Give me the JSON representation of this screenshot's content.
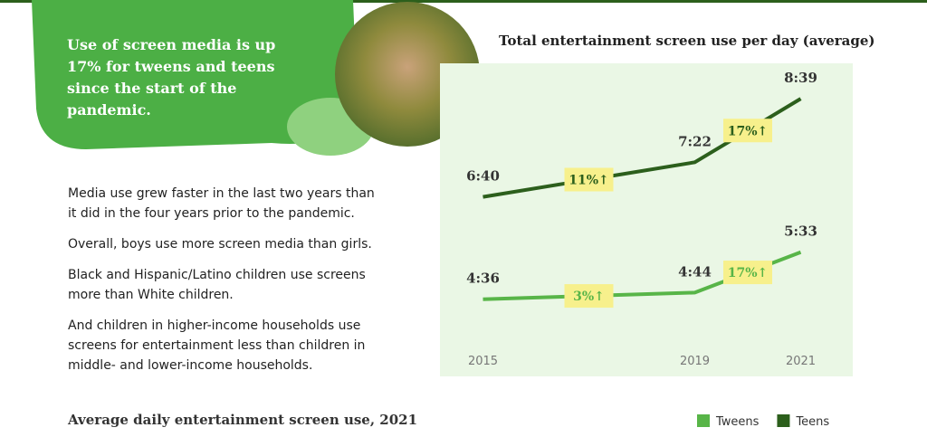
{
  "headline": "Use of screen media is up 17% for tweens and teens since the start of the pandemic.",
  "paragraphs": [
    "Media use grew faster in the last two years than it did in the four years prior to the pandemic.",
    "Overall, boys use more screen media than girls.",
    "Black and Hispanic/Latino children use screens more than White children.",
    "And children in higher-income households use screens for entertainment less than children in middle- and lower-income households."
  ],
  "section_heading": "Average daily entertainment screen use, 2021",
  "chart_data": {
    "type": "line",
    "title": "Total entertainment screen use per day (average)",
    "x": [
      2015,
      2019,
      2021
    ],
    "xlim": [
      2014,
      2022
    ],
    "xticks": [
      2015,
      2019,
      2021
    ],
    "ylim": [
      200,
      540
    ],
    "series": [
      {
        "name": "Tweens",
        "color": "#58b548",
        "values": [
          276,
          284,
          333
        ],
        "value_labels": [
          "4:36",
          "4:44",
          "5:33"
        ],
        "change_labels": [
          "3%↑",
          "17%↑"
        ]
      },
      {
        "name": "Teens",
        "color": "#2c5f1c",
        "values": [
          400,
          442,
          519
        ],
        "value_labels": [
          "6:40",
          "7:22",
          "8:39"
        ],
        "change_labels": [
          "11%↑",
          "17%↑"
        ]
      }
    ]
  }
}
